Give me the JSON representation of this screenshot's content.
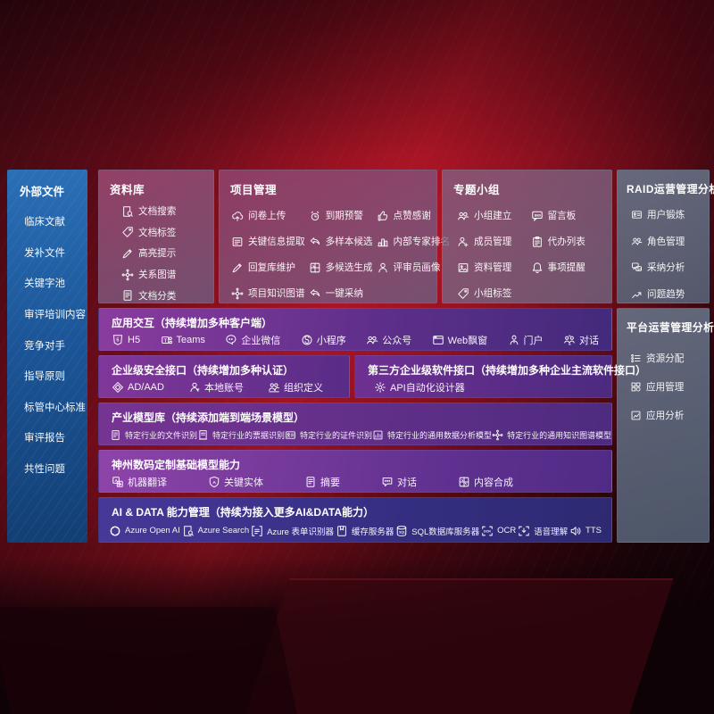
{
  "colors": {
    "background_red": "#9c1322",
    "sidebar_blue": "#1c5699",
    "panel_purple": "#6a2f8d",
    "row_indigo": "#3a2f86",
    "panel_gray": "#5c6b82"
  },
  "sidebar": {
    "title": "外部文件",
    "items": [
      "临床文献",
      "发补文件",
      "关键字池",
      "审评培训内容",
      "竞争对手",
      "指导原则",
      "标管中心标准",
      "审评报告",
      "共性问题"
    ]
  },
  "library": {
    "title": "资料库",
    "items": [
      {
        "icon": "doc-search-icon",
        "label": "文档搜索"
      },
      {
        "icon": "tag-icon",
        "label": "文档标签"
      },
      {
        "icon": "highlight-pen-icon",
        "label": "高亮提示"
      },
      {
        "icon": "knowledge-graph-icon",
        "label": "关系图谱"
      },
      {
        "icon": "doc-classify-icon",
        "label": "文档分类"
      }
    ]
  },
  "project": {
    "title": "项目管理",
    "columns": [
      [
        {
          "icon": "cloud-upload-icon",
          "label": "问卷上传"
        },
        {
          "icon": "doc-extract-icon",
          "label": "关键信息提取"
        },
        {
          "icon": "edit-pen-icon",
          "label": "回复库维护"
        },
        {
          "icon": "knowledge-graph-icon",
          "label": "项目知识图谱"
        }
      ],
      [
        {
          "icon": "alarm-icon",
          "label": "到期预警"
        },
        {
          "icon": "reply-arrow-icon",
          "label": "多样本候选"
        },
        {
          "icon": "multi-gen-icon",
          "label": "多候选生成"
        },
        {
          "icon": "adopt-arrow-icon",
          "label": "一键采纳"
        }
      ],
      [
        {
          "icon": "thumb-up-icon",
          "label": "点赞感谢"
        },
        {
          "icon": "ranking-icon",
          "label": "内部专家排名"
        },
        {
          "icon": "person-icon",
          "label": "评审员画像"
        }
      ]
    ]
  },
  "groups": {
    "title": "专题小组",
    "columns": [
      [
        {
          "icon": "people-icon",
          "label": "小组建立"
        },
        {
          "icon": "person-add-icon",
          "label": "成员管理"
        },
        {
          "icon": "photo-icon",
          "label": "资料管理"
        },
        {
          "icon": "tag-icon",
          "label": "小组标签"
        }
      ],
      [
        {
          "icon": "bbs-icon",
          "label": "留言板"
        },
        {
          "icon": "clipboard-icon",
          "label": "代办列表"
        },
        {
          "icon": "bell-icon",
          "label": "事项提醒"
        }
      ]
    ]
  },
  "raid": {
    "title": "RAID运营管理分析",
    "items": [
      {
        "icon": "id-card-icon",
        "label": "用户锻炼"
      },
      {
        "icon": "people-icon",
        "label": "角色管理"
      },
      {
        "icon": "qa-bubble-icon",
        "label": "采纳分析"
      },
      {
        "icon": "trend-icon",
        "label": "问题趋势"
      }
    ]
  },
  "platform": {
    "title": "平台运营管理分析",
    "items": [
      {
        "icon": "allocation-list-icon",
        "label": "资源分配"
      },
      {
        "icon": "app-grid-icon",
        "label": "应用管理"
      },
      {
        "icon": "app-chart-icon",
        "label": "应用分析"
      }
    ]
  },
  "rows": {
    "interaction": {
      "title": "应用交互（持续增加多种客户端）",
      "items": [
        {
          "icon": "h5-icon",
          "label": "H5"
        },
        {
          "icon": "teams-icon",
          "label": "Teams"
        },
        {
          "icon": "wechat-work-icon",
          "label": "企业微信"
        },
        {
          "icon": "miniprogram-icon",
          "label": "小程序"
        },
        {
          "icon": "public-account-icon",
          "label": "公众号"
        },
        {
          "icon": "web-window-icon",
          "label": "Web飘窗"
        },
        {
          "icon": "portal-icon",
          "label": "门户"
        },
        {
          "icon": "dialog-people-icon",
          "label": "对话"
        }
      ]
    },
    "security": {
      "title": "企业级安全接口（持续增加多种认证）",
      "items": [
        {
          "icon": "ad-diamond-icon",
          "label": "AD/AAD"
        },
        {
          "icon": "local-account-icon",
          "label": "本地账号"
        },
        {
          "icon": "org-define-icon",
          "label": "组织定义"
        }
      ]
    },
    "third_party": {
      "title": "第三方企业级软件接口（持续增加多种企业主流软件接口）",
      "items": [
        {
          "icon": "api-gear-icon",
          "label": "API自动化设计器"
        }
      ]
    },
    "industry": {
      "title": "产业模型库（持续添加端到端场景模型）",
      "items": [
        {
          "icon": "doc-recognize-icon",
          "label": "特定行业的文件识别"
        },
        {
          "icon": "receipt-icon",
          "label": "特定行业的票据识别"
        },
        {
          "icon": "id-card-icon",
          "label": "特定行业的证件识别"
        },
        {
          "icon": "data-chart-icon",
          "label": "特定行业的通用数据分析模型"
        },
        {
          "icon": "knowledge-graph-icon",
          "label": "特定行业的通用知识图谱模型"
        }
      ]
    },
    "custom": {
      "title": "神州数码定制基础模型能力",
      "items": [
        {
          "icon": "translate-icon",
          "label": "机器翻译"
        },
        {
          "icon": "entity-shield-icon",
          "label": "关键实体"
        },
        {
          "icon": "summary-doc-icon",
          "label": "摘要"
        },
        {
          "icon": "chat-bubble-icon",
          "label": "对话"
        },
        {
          "icon": "compose-grid-icon",
          "label": "内容合成"
        }
      ]
    },
    "ai_data": {
      "title": "AI & DATA 能力管理（持续为接入更多AI&DATA能力）",
      "items": [
        {
          "icon": "openai-icon",
          "label": "Azure Open AI"
        },
        {
          "icon": "azure-search-icon",
          "label": "Azure Search"
        },
        {
          "icon": "form-recognizer-icon",
          "label": "Azure 表单识别器"
        },
        {
          "icon": "cache-server-icon",
          "label": "缓存服务器"
        },
        {
          "icon": "sql-db-icon",
          "label": "SQL数据库服务器"
        },
        {
          "icon": "ocr-icon",
          "label": "OCR"
        },
        {
          "icon": "speech-icon",
          "label": "语音理解"
        },
        {
          "icon": "tts-icon",
          "label": "TTS"
        }
      ]
    }
  }
}
